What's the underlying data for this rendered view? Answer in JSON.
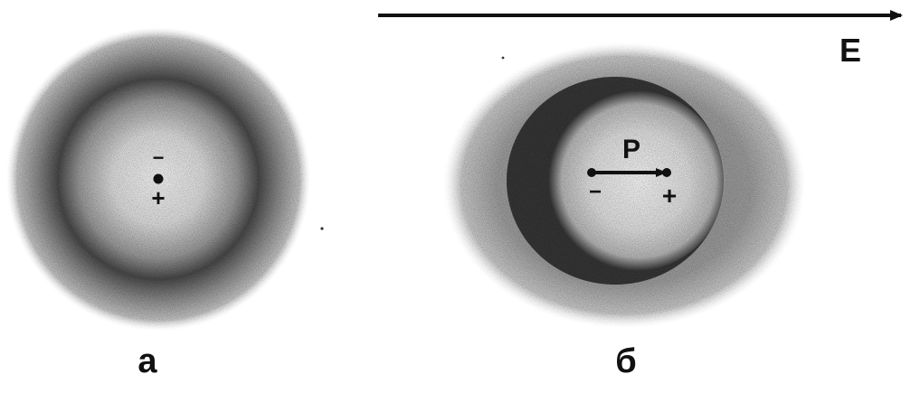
{
  "field": {
    "label": "E"
  },
  "atom_a": {
    "caption": "а",
    "minus_sign": "−",
    "plus_sign": "+"
  },
  "atom_b": {
    "caption": "б",
    "dipole_label": "P",
    "minus_sign": "−",
    "plus_sign": "+"
  },
  "colors": {
    "ink": "#111111",
    "cloud_dark": "#3a3a3a",
    "cloud_mid": "#8a8a8a",
    "cloud_light": "#d6d6d6",
    "background": "#ffffff"
  }
}
